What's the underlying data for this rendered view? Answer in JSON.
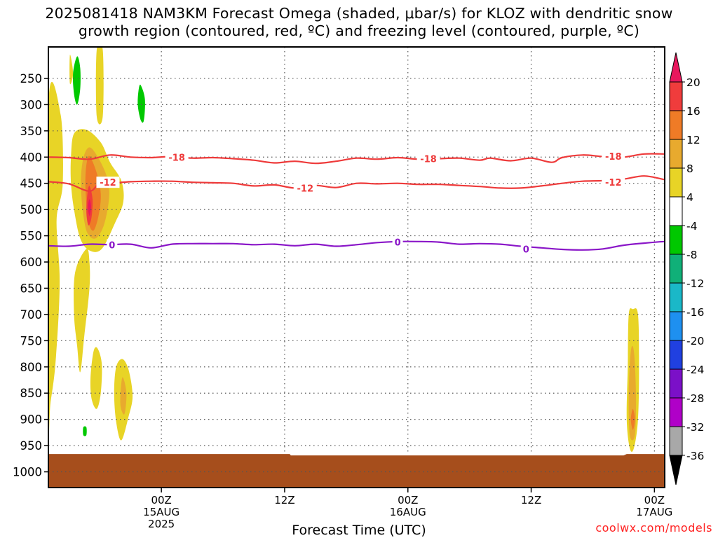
{
  "title_line1": "2025081418 NAM3KM Forecast Omega (shaded, μbar/s) for KLOZ with dendritic snow",
  "title_line2": "growth region (contoured, red, ºC) and freezing level (contoured, purple, ºC)",
  "x_axis_title": "Forecast Time (UTC)",
  "credit": "coolwx.com/models",
  "chart_data": {
    "type": "heatmap",
    "title": "2025081418 NAM3KM Forecast Omega (shaded, μbar/s) for KLOZ with dendritic snow growth region (contoured, red, ºC) and freezing level (contoured, purple, ºC)",
    "xlabel": "Forecast Time (UTC)",
    "ylabel": "",
    "x_units": "forecast hours from 2025-08-14 18Z",
    "x_range_hours": [
      -5,
      55
    ],
    "y_axis": "pressure (mb), inverted",
    "y_range_mb": [
      190,
      1030
    ],
    "y_ticks": [
      250,
      300,
      350,
      400,
      450,
      500,
      550,
      600,
      650,
      700,
      750,
      800,
      850,
      900,
      950,
      1000
    ],
    "x_ticks": [
      {
        "hour": 6,
        "label": "00Z",
        "label2": "15AUG",
        "label3": "2025"
      },
      {
        "hour": 18,
        "label": "12Z",
        "label2": "",
        "label3": ""
      },
      {
        "hour": 30,
        "label": "00Z",
        "label2": "16AUG",
        "label3": ""
      },
      {
        "hour": 42,
        "label": "12Z",
        "label2": "",
        "label3": ""
      },
      {
        "hour": 54,
        "label": "00Z",
        "label2": "17AUG",
        "label3": ""
      }
    ],
    "grid": true,
    "colorbar": {
      "levels": [
        20,
        16,
        12,
        8,
        4,
        -4,
        -8,
        -12,
        -16,
        -20,
        -24,
        -28,
        -32,
        -36
      ],
      "colors": [
        "#e8175d",
        "#f03c3c",
        "#ef7b26",
        "#e8aa2e",
        "#e8d426",
        "#ffffff",
        "#00c800",
        "#10b078",
        "#1ab8c8",
        "#1e90f0",
        "#2040e0",
        "#7b10c8",
        "#b000c8",
        "#a8a8a8",
        "#000000"
      ]
    },
    "contours": [
      {
        "name": "-18",
        "color": "#ee3a3a",
        "points": [
          [
            -5,
            400
          ],
          [
            -3,
            401
          ],
          [
            -1,
            404
          ],
          [
            1,
            396
          ],
          [
            3,
            400
          ],
          [
            5,
            401
          ],
          [
            7,
            399
          ],
          [
            9,
            402
          ],
          [
            11,
            401
          ],
          [
            13,
            403
          ],
          [
            15,
            406
          ],
          [
            17,
            411
          ],
          [
            19,
            408
          ],
          [
            21,
            412
          ],
          [
            23,
            408
          ],
          [
            25,
            402
          ],
          [
            27,
            404
          ],
          [
            29,
            401
          ],
          [
            31,
            404
          ],
          [
            33,
            403
          ],
          [
            35,
            402
          ],
          [
            37,
            406
          ],
          [
            38,
            402
          ],
          [
            40,
            407
          ],
          [
            42,
            402
          ],
          [
            44,
            410
          ],
          [
            45,
            401
          ],
          [
            47,
            396
          ],
          [
            49,
            399
          ],
          [
            51,
            400
          ],
          [
            53,
            394
          ],
          [
            55,
            394
          ]
        ],
        "labels": [
          [
            7.5,
            400
          ],
          [
            32,
            403
          ],
          [
            50,
            398
          ]
        ]
      },
      {
        "name": "-12",
        "color": "#ee3a3a",
        "points": [
          [
            -5,
            447
          ],
          [
            -3,
            451
          ],
          [
            -1,
            465
          ],
          [
            0,
            449
          ],
          [
            1,
            450
          ],
          [
            3,
            447
          ],
          [
            5,
            446
          ],
          [
            7,
            446
          ],
          [
            9,
            448
          ],
          [
            11,
            449
          ],
          [
            13,
            450
          ],
          [
            15,
            455
          ],
          [
            17,
            453
          ],
          [
            19,
            459
          ],
          [
            21,
            454
          ],
          [
            23,
            458
          ],
          [
            25,
            450
          ],
          [
            27,
            451
          ],
          [
            29,
            450
          ],
          [
            31,
            452
          ],
          [
            33,
            452
          ],
          [
            35,
            454
          ],
          [
            37,
            456
          ],
          [
            39,
            459
          ],
          [
            41,
            459
          ],
          [
            43,
            455
          ],
          [
            45,
            450
          ],
          [
            47,
            446
          ],
          [
            49,
            445
          ],
          [
            51,
            442
          ],
          [
            53,
            436
          ],
          [
            55,
            443
          ]
        ],
        "labels": [
          [
            0.8,
            448
          ],
          [
            20,
            459
          ],
          [
            50,
            448
          ]
        ]
      },
      {
        "name": "0",
        "color": "#8a16c8",
        "points": [
          [
            -5,
            569
          ],
          [
            -3,
            570
          ],
          [
            -1,
            566
          ],
          [
            1,
            567
          ],
          [
            3,
            566
          ],
          [
            5,
            573
          ],
          [
            7,
            566
          ],
          [
            9,
            565
          ],
          [
            11,
            565
          ],
          [
            13,
            565
          ],
          [
            15,
            567
          ],
          [
            17,
            566
          ],
          [
            19,
            569
          ],
          [
            21,
            566
          ],
          [
            23,
            570
          ],
          [
            25,
            567
          ],
          [
            27,
            563
          ],
          [
            29,
            561
          ],
          [
            31,
            561
          ],
          [
            33,
            562
          ],
          [
            35,
            566
          ],
          [
            37,
            565
          ],
          [
            39,
            566
          ],
          [
            41,
            570
          ],
          [
            43,
            573
          ],
          [
            45,
            576
          ],
          [
            47,
            577
          ],
          [
            49,
            575
          ],
          [
            51,
            568
          ],
          [
            53,
            564
          ],
          [
            55,
            561
          ],
          [
            57,
            561
          ],
          [
            59,
            570
          ]
        ],
        "labels": [
          [
            1.2,
            567
          ],
          [
            29,
            562
          ],
          [
            41.5,
            575
          ]
        ]
      }
    ],
    "omega_regions": [
      {
        "color": "#e8d426",
        "outline": [
          [
            -0.3,
            196
          ],
          [
            0.3,
            196
          ],
          [
            0.3,
            322
          ],
          [
            -0.3,
            322
          ]
        ]
      },
      {
        "color": "#e8d426",
        "outline": [
          [
            -5,
            300
          ],
          [
            -3.8,
            320
          ],
          [
            -3.6,
            450
          ],
          [
            -4.2,
            520
          ],
          [
            -3.9,
            640
          ],
          [
            -4.3,
            790
          ],
          [
            -4.8,
            870
          ],
          [
            -5,
            900
          ]
        ]
      },
      {
        "color": "#e8d426",
        "outline": [
          [
            -2.9,
            205
          ],
          [
            -2.6,
            240
          ],
          [
            -2.9,
            260
          ]
        ]
      },
      {
        "color": "#00c800",
        "outline": [
          [
            -2.2,
            208
          ],
          [
            -1.9,
            230
          ],
          [
            -1.9,
            270
          ],
          [
            -2.2,
            300
          ],
          [
            -2.5,
            280
          ],
          [
            -2.6,
            240
          ]
        ]
      },
      {
        "color": "#00c800",
        "outline": [
          [
            4,
            263
          ],
          [
            4.4,
            290
          ],
          [
            4.3,
            330
          ],
          [
            4,
            330
          ],
          [
            3.7,
            300
          ],
          [
            3.8,
            270
          ]
        ]
      },
      {
        "color": "#00c800",
        "outline": [
          [
            -1.6,
            915
          ],
          [
            -1.3,
            915
          ],
          [
            -1.3,
            930
          ],
          [
            -1.6,
            930
          ]
        ]
      },
      {
        "color": "#e8d426",
        "outline": [
          [
            -1.3,
            348
          ],
          [
            0.1,
            372
          ],
          [
            1,
            410
          ],
          [
            2.1,
            445
          ],
          [
            2.3,
            485
          ],
          [
            1.5,
            525
          ],
          [
            0.2,
            575
          ],
          [
            -1,
            578
          ],
          [
            -1.9,
            555
          ],
          [
            -2.5,
            500
          ],
          [
            -2.8,
            450
          ],
          [
            -2.8,
            400
          ],
          [
            -2.5,
            355
          ]
        ]
      },
      {
        "color": "#e8d426",
        "outline": [
          [
            -1.3,
            575
          ],
          [
            -1,
            600
          ],
          [
            -1,
            650
          ],
          [
            -1.5,
            740
          ],
          [
            -1.9,
            810
          ],
          [
            -2.2,
            760
          ],
          [
            -2.5,
            700
          ],
          [
            -2.4,
            620
          ]
        ]
      },
      {
        "color": "#e8d426",
        "outline": [
          [
            -0.2,
            765
          ],
          [
            0.2,
            795
          ],
          [
            0.1,
            850
          ],
          [
            -0.3,
            880
          ],
          [
            -0.8,
            860
          ],
          [
            -0.9,
            820
          ],
          [
            -0.6,
            770
          ]
        ]
      },
      {
        "color": "#e8d426",
        "outline": [
          [
            2.2,
            785
          ],
          [
            2.8,
            805
          ],
          [
            3.2,
            855
          ],
          [
            2.8,
            895
          ],
          [
            2.1,
            940
          ],
          [
            1.6,
            905
          ],
          [
            1.4,
            850
          ],
          [
            1.6,
            800
          ]
        ]
      },
      {
        "color": "#e8d426",
        "outline": [
          [
            51.9,
            690
          ],
          [
            52.4,
            700
          ],
          [
            52.5,
            800
          ],
          [
            52.4,
            900
          ],
          [
            52,
            955
          ],
          [
            51.6,
            955
          ],
          [
            51.3,
            900
          ],
          [
            51.4,
            800
          ],
          [
            51.5,
            700
          ]
        ]
      },
      {
        "color": "#e8aa2e",
        "outline": [
          [
            52,
            770
          ],
          [
            52.2,
            850
          ],
          [
            52.1,
            930
          ],
          [
            51.6,
            930
          ],
          [
            51.5,
            850
          ],
          [
            51.7,
            770
          ]
        ]
      },
      {
        "color": "#ef7b26",
        "outline": [
          [
            51.9,
            880
          ],
          [
            52.1,
            900
          ],
          [
            51.9,
            920
          ],
          [
            51.7,
            900
          ]
        ]
      },
      {
        "color": "#e8aa2e",
        "outline": [
          [
            2.2,
            820
          ],
          [
            2.6,
            850
          ],
          [
            2.4,
            890
          ],
          [
            2,
            870
          ]
        ]
      },
      {
        "color": "#e8aa2e",
        "outline": [
          [
            -0.9,
            382
          ],
          [
            0.1,
            410
          ],
          [
            0.8,
            445
          ],
          [
            0.9,
            480
          ],
          [
            0.4,
            530
          ],
          [
            -0.4,
            555
          ],
          [
            -1.2,
            545
          ],
          [
            -1.6,
            510
          ],
          [
            -1.8,
            470
          ],
          [
            -1.8,
            430
          ],
          [
            -1.5,
            395
          ]
        ]
      },
      {
        "color": "#ef7b26",
        "outline": [
          [
            -1,
            398
          ],
          [
            -0.3,
            430
          ],
          [
            0.1,
            470
          ],
          [
            -0.1,
            510
          ],
          [
            -0.6,
            540
          ],
          [
            -1.1,
            525
          ],
          [
            -1.3,
            490
          ],
          [
            -1.4,
            450
          ],
          [
            -1.3,
            415
          ]
        ]
      },
      {
        "color": "#f03c3c",
        "outline": [
          [
            -1,
            455
          ],
          [
            -0.7,
            480
          ],
          [
            -0.8,
            515
          ],
          [
            -1.1,
            530
          ],
          [
            -1.3,
            505
          ],
          [
            -1.2,
            470
          ]
        ]
      },
      {
        "color": "#e8175d",
        "outline": [
          [
            -1,
            480
          ],
          [
            -0.85,
            495
          ],
          [
            -1,
            512
          ],
          [
            -1.15,
            495
          ]
        ]
      }
    ]
  }
}
